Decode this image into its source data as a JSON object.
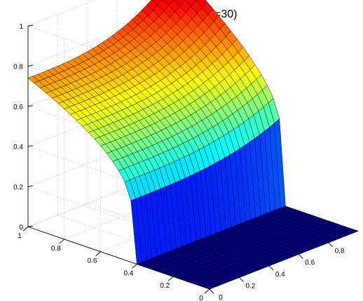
{
  "chart_data": {
    "type": "surface",
    "title": "Real Q (n=30)",
    "colormap": "jet",
    "grid_size": 30,
    "grid": true,
    "x_axis": {
      "range": [
        0,
        1
      ],
      "ticks": [
        0,
        0.2,
        0.4,
        0.6,
        0.8
      ],
      "tick_labels": [
        "0",
        "0.2",
        "0.4",
        "0.6",
        "0.8"
      ]
    },
    "y_axis": {
      "range": [
        0,
        1
      ],
      "ticks": [
        0,
        0.2,
        0.4,
        0.6,
        0.8,
        1
      ],
      "tick_labels": [
        "0",
        "0.2",
        "0.4",
        "0.6",
        "0.8",
        "1"
      ]
    },
    "z_axis": {
      "range": [
        0,
        1
      ],
      "ticks": [
        0,
        0.2,
        0.4,
        0.6,
        0.8,
        1
      ],
      "tick_labels": [
        "0",
        "0.2",
        "0.4",
        "0.6",
        "0.8",
        "1"
      ]
    },
    "surface_description": {
      "zero_region": "z = 0 for y below about 0.42",
      "step_edge_y": 0.43,
      "z_at_step": 0.27,
      "z_at_far_corner": 1.0,
      "z_at_near_far_y_corner": 0.95,
      "z_dip_mid_x_far_y": 0.74
    }
  }
}
